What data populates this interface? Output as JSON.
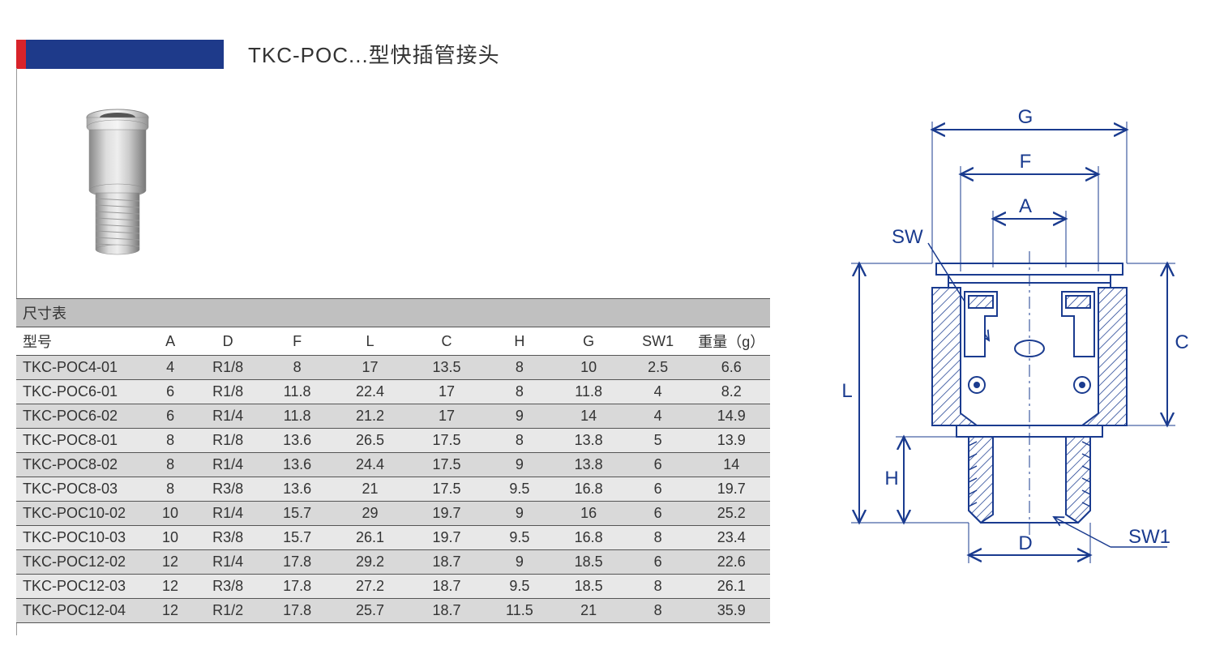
{
  "title": "TKC-POC...型快插管接头",
  "table_caption": "尺寸表",
  "colors": {
    "red_block": "#d8232a",
    "blue_block": "#1e3a8a",
    "diagram_stroke": "#1a3b8f",
    "row_odd_bg": "#d9d9d9",
    "row_even_bg": "#e8e8e8",
    "caption_bg": "#c0c0c0"
  },
  "table": {
    "columns": [
      "型号",
      "A",
      "D",
      "F",
      "L",
      "C",
      "H",
      "G",
      "SW1",
      "重量（g）"
    ],
    "rows": [
      [
        "TKC-POC4-01",
        "4",
        "R1/8",
        "8",
        "17",
        "13.5",
        "8",
        "10",
        "2.5",
        "6.6"
      ],
      [
        "TKC-POC6-01",
        "6",
        "R1/8",
        "11.8",
        "22.4",
        "17",
        "8",
        "11.8",
        "4",
        "8.2"
      ],
      [
        "TKC-POC6-02",
        "6",
        "R1/4",
        "11.8",
        "21.2",
        "17",
        "9",
        "14",
        "4",
        "14.9"
      ],
      [
        "TKC-POC8-01",
        "8",
        "R1/8",
        "13.6",
        "26.5",
        "17.5",
        "8",
        "13.8",
        "5",
        "13.9"
      ],
      [
        "TKC-POC8-02",
        "8",
        "R1/4",
        "13.6",
        "24.4",
        "17.5",
        "9",
        "13.8",
        "6",
        "14"
      ],
      [
        "TKC-POC8-03",
        "8",
        "R3/8",
        "13.6",
        "21",
        "17.5",
        "9.5",
        "16.8",
        "6",
        "19.7"
      ],
      [
        "TKC-POC10-02",
        "10",
        "R1/4",
        "15.7",
        "29",
        "19.7",
        "9",
        "16",
        "6",
        "25.2"
      ],
      [
        "TKC-POC10-03",
        "10",
        "R3/8",
        "15.7",
        "26.1",
        "19.7",
        "9.5",
        "16.8",
        "8",
        "23.4"
      ],
      [
        "TKC-POC12-02",
        "12",
        "R1/4",
        "17.8",
        "29.2",
        "18.7",
        "9",
        "18.5",
        "6",
        "22.6"
      ],
      [
        "TKC-POC12-03",
        "12",
        "R3/8",
        "17.8",
        "27.2",
        "18.7",
        "9.5",
        "18.5",
        "8",
        "26.1"
      ],
      [
        "TKC-POC12-04",
        "12",
        "R1/2",
        "17.8",
        "25.7",
        "18.7",
        "11.5",
        "21",
        "8",
        "35.9"
      ]
    ]
  },
  "diagram_labels": {
    "G": "G",
    "F": "F",
    "A": "A",
    "SW": "SW",
    "L": "L",
    "C": "C",
    "H": "H",
    "D": "D",
    "SW1": "SW1"
  }
}
